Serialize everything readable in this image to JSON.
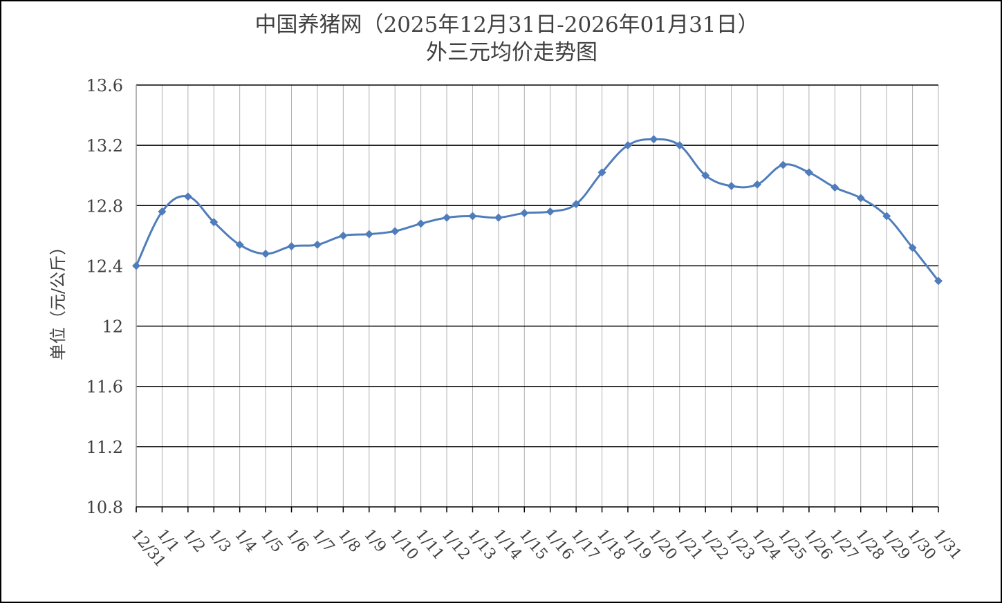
{
  "chart_data": {
    "type": "line",
    "title": [
      "中国养猪网（2025年12月31日-2026年01月31日）",
      "外三元均价走势图"
    ],
    "xlabel": "",
    "ylabel": "单位（元/公斤）",
    "ylim": [
      10.8,
      13.6
    ],
    "yticks": [
      "10.8",
      "11.2",
      "11.6",
      "12",
      "12.4",
      "12.8",
      "13.2",
      "13.6"
    ],
    "categories": [
      "12/31",
      "1/1",
      "1/2",
      "1/3",
      "1/4",
      "1/5",
      "1/6",
      "1/7",
      "1/8",
      "1/9",
      "1/10",
      "1/11",
      "1/12",
      "1/13",
      "1/14",
      "1/15",
      "1/16",
      "1/17",
      "1/18",
      "1/19",
      "1/20",
      "1/21",
      "1/22",
      "1/23",
      "1/24",
      "1/25",
      "1/26",
      "1/27",
      "1/28",
      "1/29",
      "1/30",
      "1/31"
    ],
    "series": [
      {
        "name": "",
        "color": "#4f7dbb",
        "values": [
          12.4,
          12.76,
          12.86,
          12.69,
          12.54,
          12.48,
          12.53,
          12.54,
          12.6,
          12.61,
          12.63,
          12.68,
          12.72,
          12.73,
          12.72,
          12.75,
          12.76,
          12.81,
          13.02,
          13.2,
          13.24,
          13.2,
          13.0,
          12.93,
          12.94,
          13.07,
          13.02,
          12.92,
          12.85,
          12.73,
          12.52,
          12.3
        ]
      }
    ],
    "grid": true,
    "smooth": true,
    "marker": "diamond"
  }
}
